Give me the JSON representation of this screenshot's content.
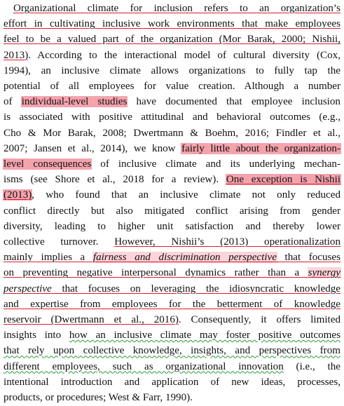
{
  "document": {
    "lines": [
      [
        {
          "t": "Organizational climate for inclusion refers to an organization’s",
          "s": "ul-red"
        }
      ],
      [
        {
          "t": "effort in cultivating inclusive work environments that make employees",
          "s": "ul-red"
        }
      ],
      [
        {
          "t": "feel to be a valued part of the organization (Mor Barak, 2000; Nishii,",
          "s": "ul-red"
        }
      ],
      [
        {
          "t": "2013)",
          "s": "ul-red"
        },
        {
          "t": ". According to the interactional model of cultural diversity (Cox,",
          "s": ""
        }
      ],
      [
        {
          "t": "1994), an inclusive climate allows organizations to fully tap the",
          "s": ""
        }
      ],
      [
        {
          "t": "potential of all employees for value creation. Although a number",
          "s": ""
        }
      ],
      [
        {
          "t": "of ",
          "s": ""
        },
        {
          "t": "individual-level studies",
          "s": "hl"
        },
        {
          "t": " have documented that employee inclusion",
          "s": ""
        }
      ],
      [
        {
          "t": "is associated with positive attitudinal and behavioral outcomes (e.g.,",
          "s": ""
        }
      ],
      [
        {
          "t": "Cho & Mor Barak, 2008; Dwertmann & Boehm, 2016; Findler et al.,",
          "s": ""
        }
      ],
      [
        {
          "t": "2007; Jansen et al., 2014), we know ",
          "s": ""
        },
        {
          "t": "fairly little about the organization-",
          "s": "hl"
        }
      ],
      [
        {
          "t": "level consequences",
          "s": "hl"
        },
        {
          "t": " of inclusive climate and its underlying mechan-",
          "s": ""
        }
      ],
      [
        {
          "t": "isms (see Shore et al., 2018 for a review). ",
          "s": ""
        },
        {
          "t": "One exception is Nishii",
          "s": "hl ul-red"
        }
      ],
      [
        {
          "t": "(2013)",
          "s": "hl ul-red"
        },
        {
          "t": ", who found that an inclusive climate not only reduced",
          "s": ""
        }
      ],
      [
        {
          "t": "conflict directly but also mitigated conflict arising from gender",
          "s": ""
        }
      ],
      [
        {
          "t": "diversity, leading to higher unit satisfaction and thereby lower",
          "s": ""
        }
      ],
      [
        {
          "t": "collective turnover. ",
          "s": ""
        },
        {
          "t": "However, Nishii’s (2013) operationalization",
          "s": "ul-red"
        }
      ],
      [
        {
          "t": "mainly implies a ",
          "s": "ul-red"
        },
        {
          "t": "fairness and discrimination perspective",
          "s": "hl-light ul-red ital"
        },
        {
          "t": " that focuses",
          "s": "ul-red"
        }
      ],
      [
        {
          "t": "on preventing negative interpersonal dynamics rather than a ",
          "s": "ul-red"
        },
        {
          "t": "synergy",
          "s": "hl-light ul-red ital"
        }
      ],
      [
        {
          "t": "perspective",
          "s": "ul-red ital"
        },
        {
          "t": " that focuses on leveraging the idiosyncratic knowledge",
          "s": "ul-red"
        }
      ],
      [
        {
          "t": "and expertise from employees for the betterment of knowledge",
          "s": "ul-red"
        }
      ],
      [
        {
          "t": "reservoir (Dwertmann et al., 2016)",
          "s": "ul-red"
        },
        {
          "t": ". Consequently, it offers limited",
          "s": ""
        }
      ],
      [
        {
          "t": "insights into ",
          "s": ""
        },
        {
          "t": "how an inclusive climate may foster positive outcomes",
          "s": "ul-green"
        }
      ],
      [
        {
          "t": "that rely upon collective knowledge, insights, and perspectives from",
          "s": "ul-green"
        }
      ],
      [
        {
          "t": "different employees, such as organizational innovation",
          "s": "ul-green"
        },
        {
          "t": " (i.e., the",
          "s": ""
        }
      ],
      [
        {
          "t": "intentional introduction and application of new ideas, processes,",
          "s": ""
        }
      ],
      [
        {
          "t": "products, or procedures; West & Farr, 1990).",
          "s": ""
        }
      ]
    ]
  },
  "colors": {
    "text": "#111111",
    "highlight": "#f4a3ad",
    "highlight_light": "#fcd4da",
    "underline_red": "#e2192a",
    "underline_green_wavy": "#2e9a3a"
  }
}
